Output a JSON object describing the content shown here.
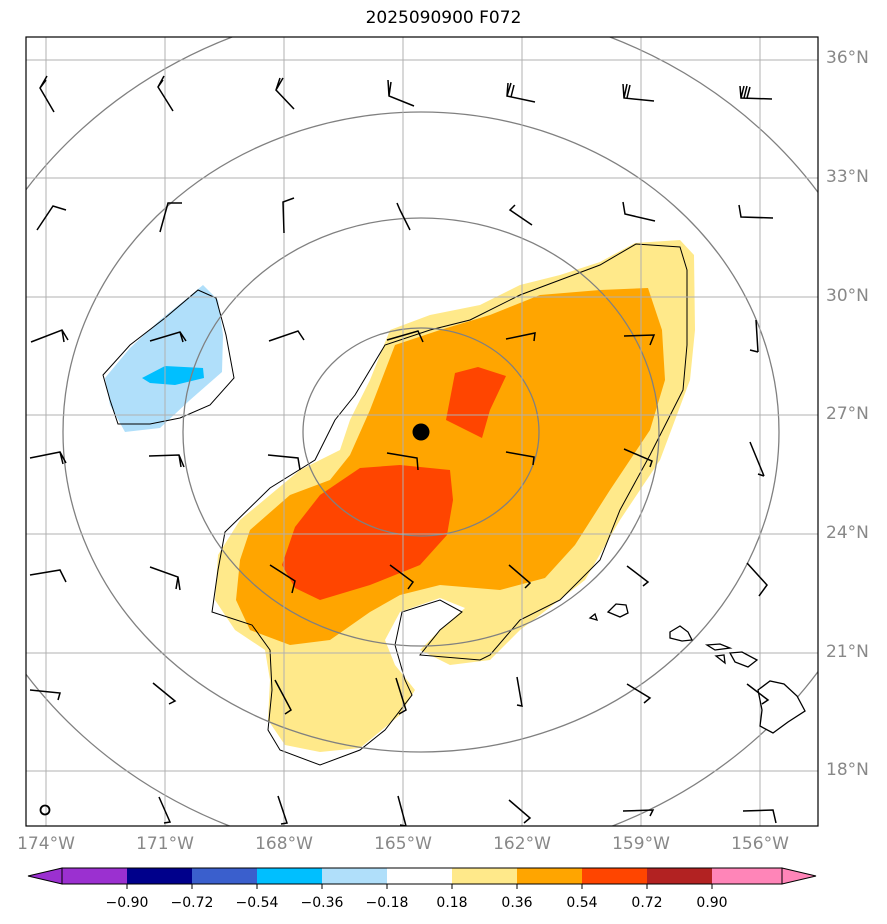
{
  "title": "2025090900 F072",
  "map": {
    "latitude_labels": [
      "36°N",
      "33°N",
      "30°N",
      "27°N",
      "24°N",
      "21°N",
      "18°N"
    ],
    "longitude_labels": [
      "174°W",
      "171°W",
      "168°W",
      "165°W",
      "162°W",
      "159°W",
      "156°W"
    ],
    "center_marker": {
      "lat": 26.6,
      "lon": -164.5
    }
  },
  "colorbar": {
    "tick_labels": [
      "−0.90",
      "−0.72",
      "−0.54",
      "−0.36",
      "−0.18",
      "0.18",
      "0.36",
      "0.54",
      "0.72",
      "0.90"
    ],
    "colors": [
      "#9b30d0",
      "#00008b",
      "#3a5fcd",
      "#00bfff",
      "#b0dffa",
      "#ffffff",
      "#ffe98a",
      "#ffa500",
      "#ff4500",
      "#b22222",
      "#ff85b8"
    ]
  },
  "colors": {
    "grid": "#b0b0b0",
    "range_ring": "#808080",
    "contour_outline": "#000000"
  }
}
